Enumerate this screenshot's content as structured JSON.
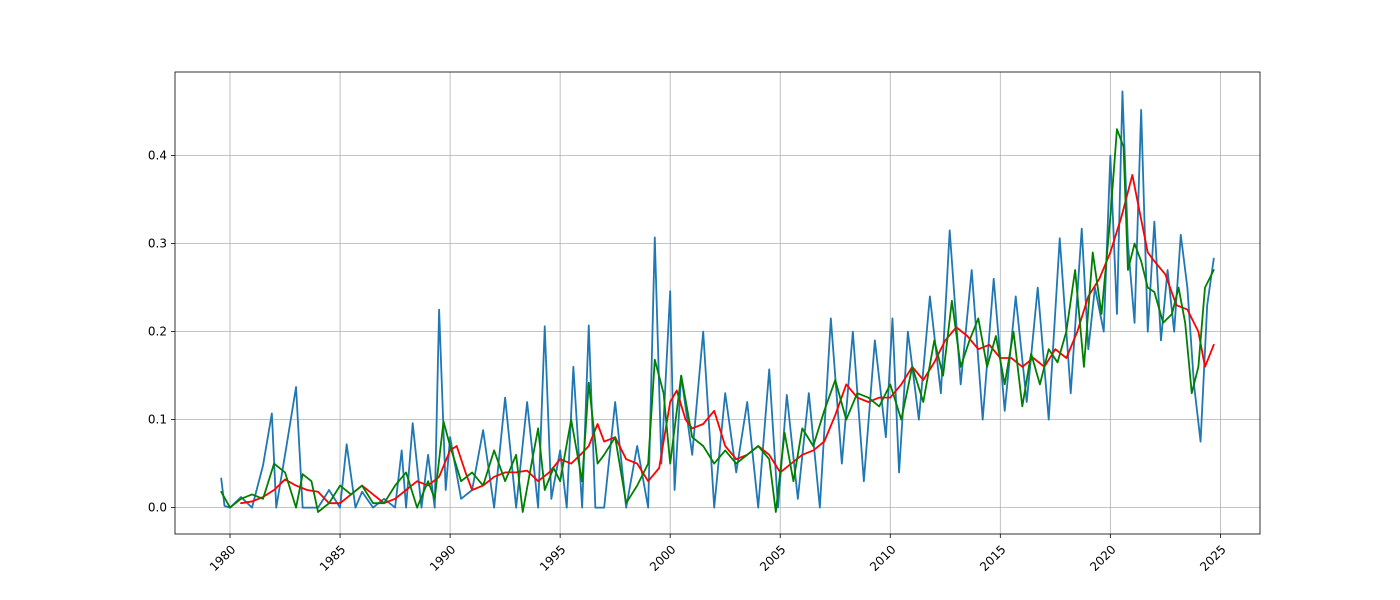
{
  "chart_data": {
    "type": "line",
    "xlabel": "",
    "ylabel": "",
    "xlim": [
      1977.5,
      2026.8
    ],
    "ylim": [
      -0.03,
      0.495
    ],
    "grid": true,
    "x_ticks": [
      "1980",
      "1985",
      "1990",
      "1995",
      "2000",
      "2005",
      "2010",
      "2015",
      "2020",
      "2025"
    ],
    "x_tick_values": [
      1980,
      1985,
      1990,
      1995,
      2000,
      2005,
      2010,
      2015,
      2020,
      2025
    ],
    "y_ticks": [
      "0.0",
      "0.1",
      "0.2",
      "0.3",
      "0.4"
    ],
    "y_tick_values": [
      0.0,
      0.1,
      0.2,
      0.3,
      0.4
    ],
    "series": [
      {
        "color": "#1f77b4",
        "x": [
          1979.6,
          1979.75,
          1980.0,
          1980.5,
          1981.0,
          1981.5,
          1981.9,
          1982.1,
          1982.5,
          1983.0,
          1983.3,
          1984.0,
          1984.5,
          1985.0,
          1985.3,
          1985.7,
          1986.0,
          1986.5,
          1987.0,
          1987.5,
          1987.8,
          1988.0,
          1988.3,
          1988.7,
          1989.0,
          1989.3,
          1989.5,
          1989.8,
          1990.0,
          1990.5,
          1991.0,
          1991.5,
          1992.0,
          1992.5,
          1993.0,
          1993.5,
          1994.0,
          1994.3,
          1994.6,
          1995.0,
          1995.3,
          1995.6,
          1996.0,
          1996.3,
          1996.6,
          1997.0,
          1997.5,
          1998.0,
          1998.5,
          1999.0,
          1999.3,
          1999.6,
          2000.0,
          2000.2,
          2000.5,
          2001.0,
          2001.5,
          2002.0,
          2002.5,
          2003.0,
          2003.5,
          2004.0,
          2004.5,
          2004.9,
          2005.3,
          2005.8,
          2006.3,
          2006.8,
          2007.3,
          2007.8,
          2008.3,
          2008.8,
          2009.3,
          2009.8,
          2010.1,
          2010.4,
          2010.8,
          2011.3,
          2011.8,
          2012.3,
          2012.7,
          2013.2,
          2013.7,
          2014.2,
          2014.7,
          2015.2,
          2015.7,
          2016.2,
          2016.7,
          2017.2,
          2017.7,
          2018.2,
          2018.7,
          2019.0,
          2019.3,
          2019.7,
          2020.0,
          2020.3,
          2020.55,
          2020.8,
          2021.1,
          2021.4,
          2021.7,
          2022.0,
          2022.3,
          2022.6,
          2022.9,
          2023.2,
          2023.5,
          2023.8,
          2024.1,
          2024.4,
          2024.7
        ],
        "y": [
          0.033,
          0.002,
          0.0,
          0.012,
          0.0,
          0.048,
          0.107,
          0.0,
          0.06,
          0.137,
          0.0,
          0.0,
          0.02,
          0.0,
          0.072,
          0.0,
          0.018,
          0.0,
          0.01,
          0.0,
          0.065,
          0.0,
          0.096,
          0.0,
          0.06,
          0.0,
          0.225,
          0.02,
          0.08,
          0.01,
          0.02,
          0.088,
          0.0,
          0.125,
          0.0,
          0.12,
          0.0,
          0.206,
          0.01,
          0.065,
          0.0,
          0.16,
          0.0,
          0.207,
          0.0,
          0.0,
          0.12,
          0.0,
          0.07,
          0.0,
          0.307,
          0.05,
          0.246,
          0.02,
          0.15,
          0.06,
          0.2,
          0.0,
          0.13,
          0.04,
          0.12,
          0.0,
          0.157,
          0.0,
          0.128,
          0.01,
          0.13,
          0.0,
          0.215,
          0.05,
          0.2,
          0.03,
          0.19,
          0.08,
          0.215,
          0.04,
          0.2,
          0.1,
          0.24,
          0.13,
          0.315,
          0.14,
          0.27,
          0.1,
          0.26,
          0.11,
          0.24,
          0.12,
          0.25,
          0.1,
          0.306,
          0.13,
          0.317,
          0.18,
          0.25,
          0.2,
          0.4,
          0.22,
          0.473,
          0.3,
          0.21,
          0.452,
          0.2,
          0.325,
          0.19,
          0.27,
          0.2,
          0.31,
          0.25,
          0.14,
          0.075,
          0.23,
          0.283
        ]
      },
      {
        "color": "#ff0000",
        "x": [
          1980.5,
          1981.0,
          1981.5,
          1982.0,
          1982.5,
          1983.0,
          1983.5,
          1984.0,
          1984.5,
          1985.0,
          1985.5,
          1986.0,
          1986.5,
          1987.0,
          1987.5,
          1988.0,
          1988.5,
          1989.0,
          1989.5,
          1990.0,
          1990.3,
          1990.7,
          1991.0,
          1991.5,
          1992.0,
          1992.5,
          1993.0,
          1993.5,
          1994.0,
          1994.5,
          1995.0,
          1995.5,
          1996.0,
          1996.3,
          1996.7,
          1997.0,
          1997.5,
          1998.0,
          1998.5,
          1999.0,
          1999.5,
          2000.0,
          2000.3,
          2000.7,
          2001.0,
          2001.5,
          2002.0,
          2002.5,
          2003.0,
          2003.5,
          2004.0,
          2004.5,
          2005.0,
          2005.5,
          2006.0,
          2006.5,
          2007.0,
          2007.5,
          2008.0,
          2008.5,
          2009.0,
          2009.5,
          2010.0,
          2010.5,
          2011.0,
          2011.5,
          2012.0,
          2012.5,
          2013.0,
          2013.5,
          2014.0,
          2014.5,
          2015.0,
          2015.5,
          2016.0,
          2016.5,
          2017.0,
          2017.5,
          2018.0,
          2018.5,
          2019.0,
          2019.5,
          2020.0,
          2020.5,
          2021.0,
          2021.3,
          2021.7,
          2022.0,
          2022.5,
          2023.0,
          2023.5,
          2024.0,
          2024.3,
          2024.7
        ],
        "y": [
          0.005,
          0.007,
          0.012,
          0.02,
          0.032,
          0.025,
          0.02,
          0.018,
          0.005,
          0.005,
          0.015,
          0.025,
          0.015,
          0.005,
          0.01,
          0.02,
          0.03,
          0.025,
          0.035,
          0.065,
          0.07,
          0.04,
          0.02,
          0.025,
          0.035,
          0.04,
          0.04,
          0.042,
          0.03,
          0.04,
          0.055,
          0.05,
          0.062,
          0.07,
          0.095,
          0.075,
          0.08,
          0.055,
          0.05,
          0.03,
          0.045,
          0.12,
          0.133,
          0.1,
          0.09,
          0.095,
          0.11,
          0.07,
          0.055,
          0.06,
          0.07,
          0.06,
          0.04,
          0.05,
          0.06,
          0.065,
          0.075,
          0.105,
          0.14,
          0.125,
          0.12,
          0.125,
          0.125,
          0.14,
          0.16,
          0.145,
          0.165,
          0.19,
          0.205,
          0.195,
          0.18,
          0.185,
          0.17,
          0.17,
          0.16,
          0.17,
          0.16,
          0.18,
          0.17,
          0.2,
          0.24,
          0.26,
          0.29,
          0.33,
          0.378,
          0.34,
          0.29,
          0.28,
          0.265,
          0.23,
          0.225,
          0.2,
          0.16,
          0.185
        ]
      },
      {
        "color": "#008000",
        "x": [
          1979.6,
          1980.0,
          1980.5,
          1981.0,
          1981.5,
          1982.0,
          1982.5,
          1983.0,
          1983.3,
          1983.7,
          1984.0,
          1984.5,
          1985.0,
          1985.5,
          1986.0,
          1986.5,
          1987.0,
          1987.5,
          1988.0,
          1988.5,
          1989.0,
          1989.3,
          1989.7,
          1990.0,
          1990.5,
          1991.0,
          1991.5,
          1992.0,
          1992.5,
          1993.0,
          1993.3,
          1993.7,
          1994.0,
          1994.3,
          1994.7,
          1995.0,
          1995.5,
          1996.0,
          1996.3,
          1996.7,
          1997.0,
          1997.5,
          1998.0,
          1998.5,
          1999.0,
          1999.3,
          1999.7,
          2000.0,
          2000.5,
          2001.0,
          2001.5,
          2002.0,
          2002.5,
          2003.0,
          2003.5,
          2004.0,
          2004.5,
          2004.8,
          2005.2,
          2005.6,
          2006.0,
          2006.5,
          2007.0,
          2007.5,
          2008.0,
          2008.5,
          2009.0,
          2009.5,
          2010.0,
          2010.5,
          2011.0,
          2011.5,
          2012.0,
          2012.4,
          2012.8,
          2013.2,
          2013.6,
          2014.0,
          2014.4,
          2014.8,
          2015.2,
          2015.6,
          2016.0,
          2016.4,
          2016.8,
          2017.2,
          2017.6,
          2018.0,
          2018.4,
          2018.8,
          2019.2,
          2019.6,
          2020.0,
          2020.3,
          2020.6,
          2020.8,
          2021.1,
          2021.4,
          2021.7,
          2022.0,
          2022.4,
          2022.8,
          2023.1,
          2023.4,
          2023.7,
          2024.0,
          2024.3,
          2024.7
        ],
        "y": [
          0.018,
          0.0,
          0.01,
          0.015,
          0.01,
          0.05,
          0.04,
          0.0,
          0.038,
          0.03,
          -0.005,
          0.005,
          0.025,
          0.015,
          0.025,
          0.005,
          0.005,
          0.025,
          0.04,
          0.0,
          0.03,
          0.01,
          0.098,
          0.07,
          0.03,
          0.04,
          0.025,
          0.065,
          0.03,
          0.06,
          -0.005,
          0.05,
          0.09,
          0.02,
          0.045,
          0.03,
          0.1,
          0.03,
          0.142,
          0.05,
          0.06,
          0.08,
          0.005,
          0.025,
          0.05,
          0.168,
          0.13,
          0.05,
          0.15,
          0.08,
          0.07,
          0.05,
          0.065,
          0.05,
          0.06,
          0.07,
          0.055,
          -0.005,
          0.085,
          0.03,
          0.09,
          0.07,
          0.11,
          0.145,
          0.1,
          0.13,
          0.125,
          0.115,
          0.14,
          0.1,
          0.16,
          0.12,
          0.19,
          0.15,
          0.235,
          0.16,
          0.19,
          0.215,
          0.16,
          0.195,
          0.14,
          0.2,
          0.115,
          0.175,
          0.14,
          0.18,
          0.165,
          0.2,
          0.27,
          0.16,
          0.29,
          0.22,
          0.33,
          0.43,
          0.41,
          0.27,
          0.3,
          0.28,
          0.25,
          0.245,
          0.21,
          0.22,
          0.25,
          0.21,
          0.13,
          0.16,
          0.25,
          0.27
        ]
      }
    ]
  }
}
